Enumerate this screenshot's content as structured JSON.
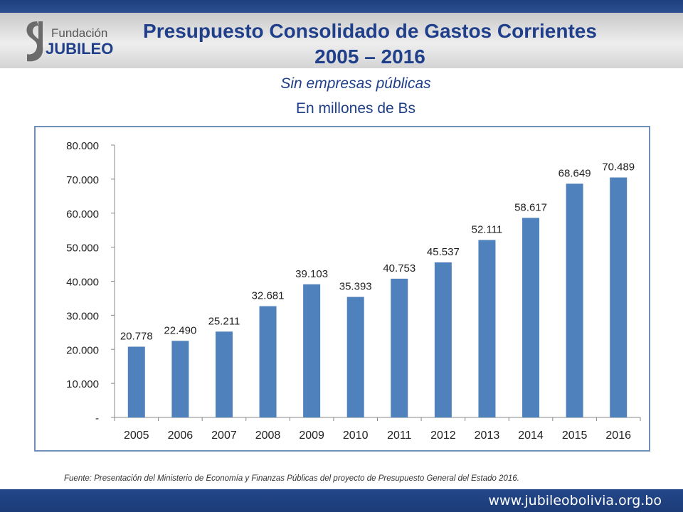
{
  "logo": {
    "line1": "Fundación",
    "line2": "JUBILEO"
  },
  "header": {
    "title_line1": "Presupuesto Consolidado de Gastos Corrientes",
    "title_line2": "2005 – 2016",
    "subtitle_line1": "Sin empresas públicas",
    "subtitle_line2": "En millones de Bs"
  },
  "footer": {
    "source": "Fuente: Presentación del Ministerio de Economía y Finanzas Públicas del proyecto de Presupuesto General del Estado 2016.",
    "website": "www.jubileobolivia.org.bo"
  },
  "colors": {
    "bar": "#4f81bd",
    "brand_blue": "#1f3f8a"
  },
  "chart_data": {
    "type": "bar",
    "categories": [
      "2005",
      "2006",
      "2007",
      "2008",
      "2009",
      "2010",
      "2011",
      "2012",
      "2013",
      "2014",
      "2015",
      "2016"
    ],
    "values": [
      20778,
      22490,
      25211,
      32681,
      39103,
      35393,
      40753,
      45537,
      52111,
      58617,
      68649,
      70489
    ],
    "data_labels": [
      "20.778",
      "22.490",
      "25.211",
      "32.681",
      "39.103",
      "35.393",
      "40.753",
      "45.537",
      "52.111",
      "58.617",
      "68.649",
      "70.489"
    ],
    "ylim": [
      0,
      80000
    ],
    "yticks": [
      0,
      10000,
      20000,
      30000,
      40000,
      50000,
      60000,
      70000,
      80000
    ],
    "ytick_labels": [
      "-",
      "10.000",
      "20.000",
      "30.000",
      "40.000",
      "50.000",
      "60.000",
      "70.000",
      "80.000"
    ],
    "grid": false,
    "legend": "none"
  }
}
